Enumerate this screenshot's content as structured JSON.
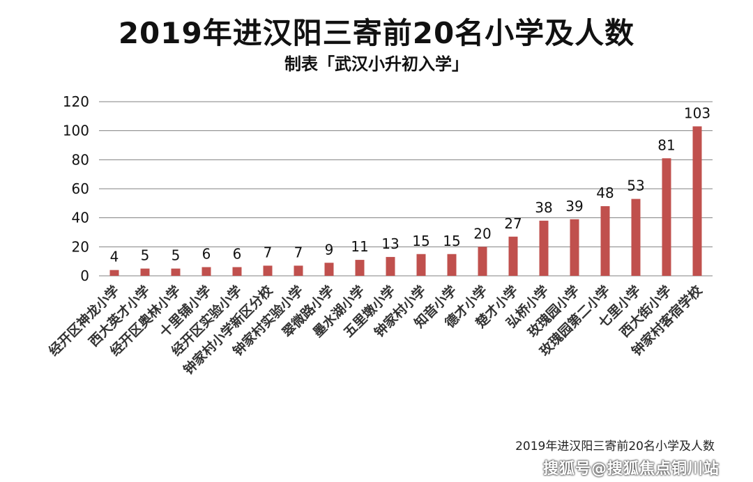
{
  "chart_data": {
    "type": "bar",
    "title": "2019年进汉阳三寄前20名小学及人数",
    "subtitle": "制表「武汉小升初入学」",
    "categories": [
      "经开区神龙小学",
      "西大英才小学",
      "经开区奥林小学",
      "十里铺小学",
      "经开区实验小学",
      "钟家村小学新区分校",
      "钟家村实验小学",
      "翠微路小学",
      "墨水湖小学",
      "五里墩小学",
      "钟家村小学",
      "知音小学",
      "德才小学",
      "楚才小学",
      "弘桥小学",
      "玫瑰园小学",
      "玫瑰园第二小学",
      "七里小学",
      "西大街小学",
      "钟家村客宿学校"
    ],
    "values": [
      4,
      5,
      5,
      6,
      6,
      7,
      7,
      9,
      11,
      13,
      15,
      15,
      20,
      27,
      38,
      39,
      48,
      53,
      81,
      103
    ],
    "ylim": [
      0,
      120
    ],
    "yticks": [
      0,
      20,
      40,
      60,
      80,
      100,
      120
    ],
    "grid": true,
    "bar_color": "#c0504d",
    "grid_color": "#808080"
  },
  "caption": "2019年进汉阳三寄前20名小学及人数",
  "watermark": "搜狐号@搜狐焦点铜川站"
}
